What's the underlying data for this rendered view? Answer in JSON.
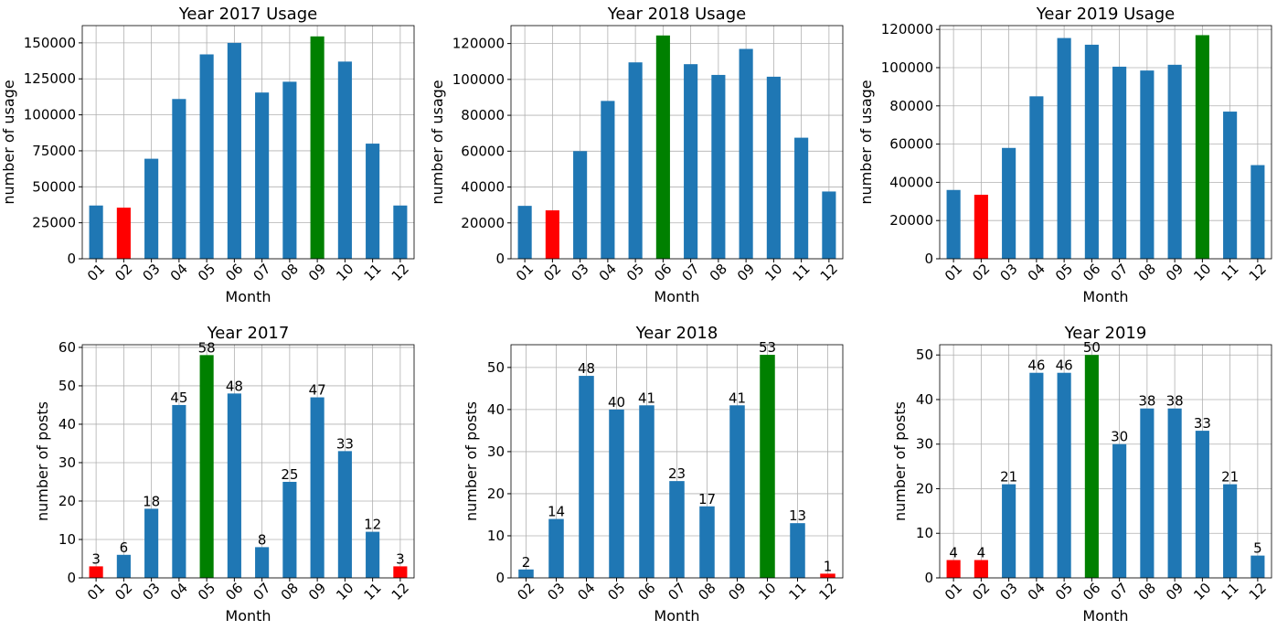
{
  "chart_data": [
    {
      "type": "bar",
      "title": "Year 2017 Usage",
      "xlabel": "Month",
      "ylabel": "number of usage",
      "categories": [
        "01",
        "02",
        "03",
        "04",
        "05",
        "06",
        "07",
        "08",
        "09",
        "10",
        "11",
        "12"
      ],
      "values": [
        37000,
        35500,
        69500,
        111000,
        142000,
        150000,
        115500,
        123000,
        154500,
        137000,
        80000,
        37000
      ],
      "colors": [
        "#1f77b4",
        "red",
        "#1f77b4",
        "#1f77b4",
        "#1f77b4",
        "#1f77b4",
        "#1f77b4",
        "#1f77b4",
        "green",
        "#1f77b4",
        "#1f77b4",
        "#1f77b4"
      ],
      "ylim": [
        0,
        162000
      ],
      "yticks": [
        0,
        25000,
        50000,
        75000,
        100000,
        125000,
        150000
      ],
      "grid": true,
      "data_labels": false
    },
    {
      "type": "bar",
      "title": "Year 2018 Usage",
      "xlabel": "Month",
      "ylabel": "number of usage",
      "categories": [
        "01",
        "02",
        "03",
        "04",
        "05",
        "06",
        "07",
        "08",
        "09",
        "10",
        "11",
        "12"
      ],
      "values": [
        29500,
        27000,
        60000,
        88000,
        109500,
        124500,
        108500,
        102500,
        117000,
        101500,
        67500,
        37500
      ],
      "colors": [
        "#1f77b4",
        "red",
        "#1f77b4",
        "#1f77b4",
        "#1f77b4",
        "green",
        "#1f77b4",
        "#1f77b4",
        "#1f77b4",
        "#1f77b4",
        "#1f77b4",
        "#1f77b4"
      ],
      "ylim": [
        0,
        130000
      ],
      "yticks": [
        0,
        20000,
        40000,
        60000,
        80000,
        100000,
        120000
      ],
      "grid": true,
      "data_labels": false
    },
    {
      "type": "bar",
      "title": "Year 2019 Usage",
      "xlabel": "Month",
      "ylabel": "number of usage",
      "categories": [
        "01",
        "02",
        "03",
        "04",
        "05",
        "06",
        "07",
        "08",
        "09",
        "10",
        "11",
        "12"
      ],
      "values": [
        36000,
        33500,
        58000,
        85000,
        115500,
        112000,
        100500,
        98500,
        101500,
        117000,
        77000,
        49000
      ],
      "colors": [
        "#1f77b4",
        "red",
        "#1f77b4",
        "#1f77b4",
        "#1f77b4",
        "#1f77b4",
        "#1f77b4",
        "#1f77b4",
        "#1f77b4",
        "green",
        "#1f77b4",
        "#1f77b4"
      ],
      "ylim": [
        0,
        122000
      ],
      "yticks": [
        0,
        20000,
        40000,
        60000,
        80000,
        100000,
        120000
      ],
      "grid": true,
      "data_labels": false
    },
    {
      "type": "bar",
      "title": "Year 2017",
      "xlabel": "Month",
      "ylabel": "number of posts",
      "categories": [
        "01",
        "02",
        "03",
        "04",
        "05",
        "06",
        "07",
        "08",
        "09",
        "10",
        "11",
        "12"
      ],
      "values": [
        3,
        6,
        18,
        45,
        58,
        48,
        8,
        25,
        47,
        33,
        12,
        3
      ],
      "colors": [
        "red",
        "#1f77b4",
        "#1f77b4",
        "#1f77b4",
        "green",
        "#1f77b4",
        "#1f77b4",
        "#1f77b4",
        "#1f77b4",
        "#1f77b4",
        "#1f77b4",
        "red"
      ],
      "ylim": [
        0,
        60.7
      ],
      "yticks": [
        0,
        10,
        20,
        30,
        40,
        50,
        60
      ],
      "grid": true,
      "data_labels": true
    },
    {
      "type": "bar",
      "title": "Year 2018",
      "xlabel": "Month",
      "ylabel": "number of posts",
      "categories": [
        "02",
        "03",
        "04",
        "05",
        "06",
        "07",
        "08",
        "09",
        "10",
        "11",
        "12"
      ],
      "values": [
        2,
        14,
        48,
        40,
        41,
        23,
        17,
        41,
        53,
        13,
        1
      ],
      "colors": [
        "#1f77b4",
        "#1f77b4",
        "#1f77b4",
        "#1f77b4",
        "#1f77b4",
        "#1f77b4",
        "#1f77b4",
        "#1f77b4",
        "green",
        "#1f77b4",
        "red"
      ],
      "ylim": [
        0,
        55.4
      ],
      "yticks": [
        0,
        10,
        20,
        30,
        40,
        50
      ],
      "grid": true,
      "data_labels": true
    },
    {
      "type": "bar",
      "title": "Year 2019",
      "xlabel": "Month",
      "ylabel": "number of posts",
      "categories": [
        "01",
        "02",
        "03",
        "04",
        "05",
        "06",
        "07",
        "08",
        "09",
        "10",
        "11",
        "12"
      ],
      "values": [
        4,
        4,
        21,
        46,
        46,
        50,
        30,
        38,
        38,
        33,
        21,
        5
      ],
      "colors": [
        "red",
        "red",
        "#1f77b4",
        "#1f77b4",
        "#1f77b4",
        "green",
        "#1f77b4",
        "#1f77b4",
        "#1f77b4",
        "#1f77b4",
        "#1f77b4",
        "#1f77b4"
      ],
      "ylim": [
        0,
        52.3
      ],
      "yticks": [
        0,
        10,
        20,
        30,
        40,
        50
      ],
      "grid": true,
      "data_labels": true
    }
  ]
}
